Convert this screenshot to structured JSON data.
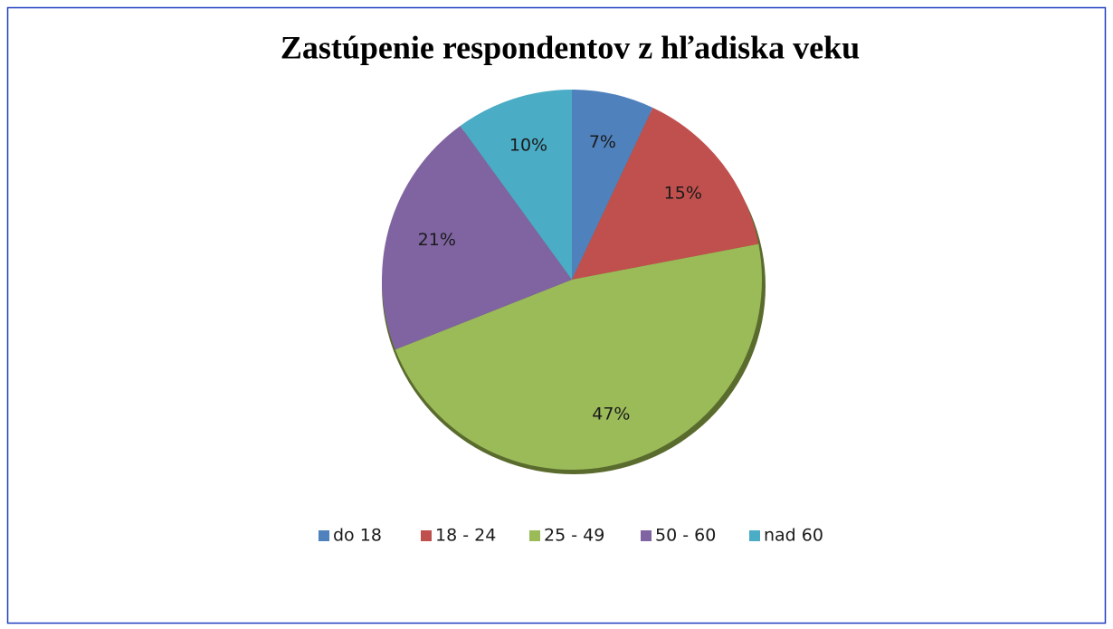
{
  "chart_data": {
    "type": "pie",
    "title": "Zastúpenie respondentov z hľadiska veku",
    "categories": [
      "do 18",
      "18 - 24",
      "25 - 49",
      "50 - 60",
      "nad 60"
    ],
    "values": [
      7,
      15,
      47,
      21,
      10
    ],
    "value_labels": [
      "7%",
      "15%",
      "47%",
      "21%",
      "10%"
    ],
    "colors": [
      "#4f81bd",
      "#c0504d",
      "#9bbb59",
      "#8064a2",
      "#4bacc6"
    ],
    "legend": "bottom"
  }
}
